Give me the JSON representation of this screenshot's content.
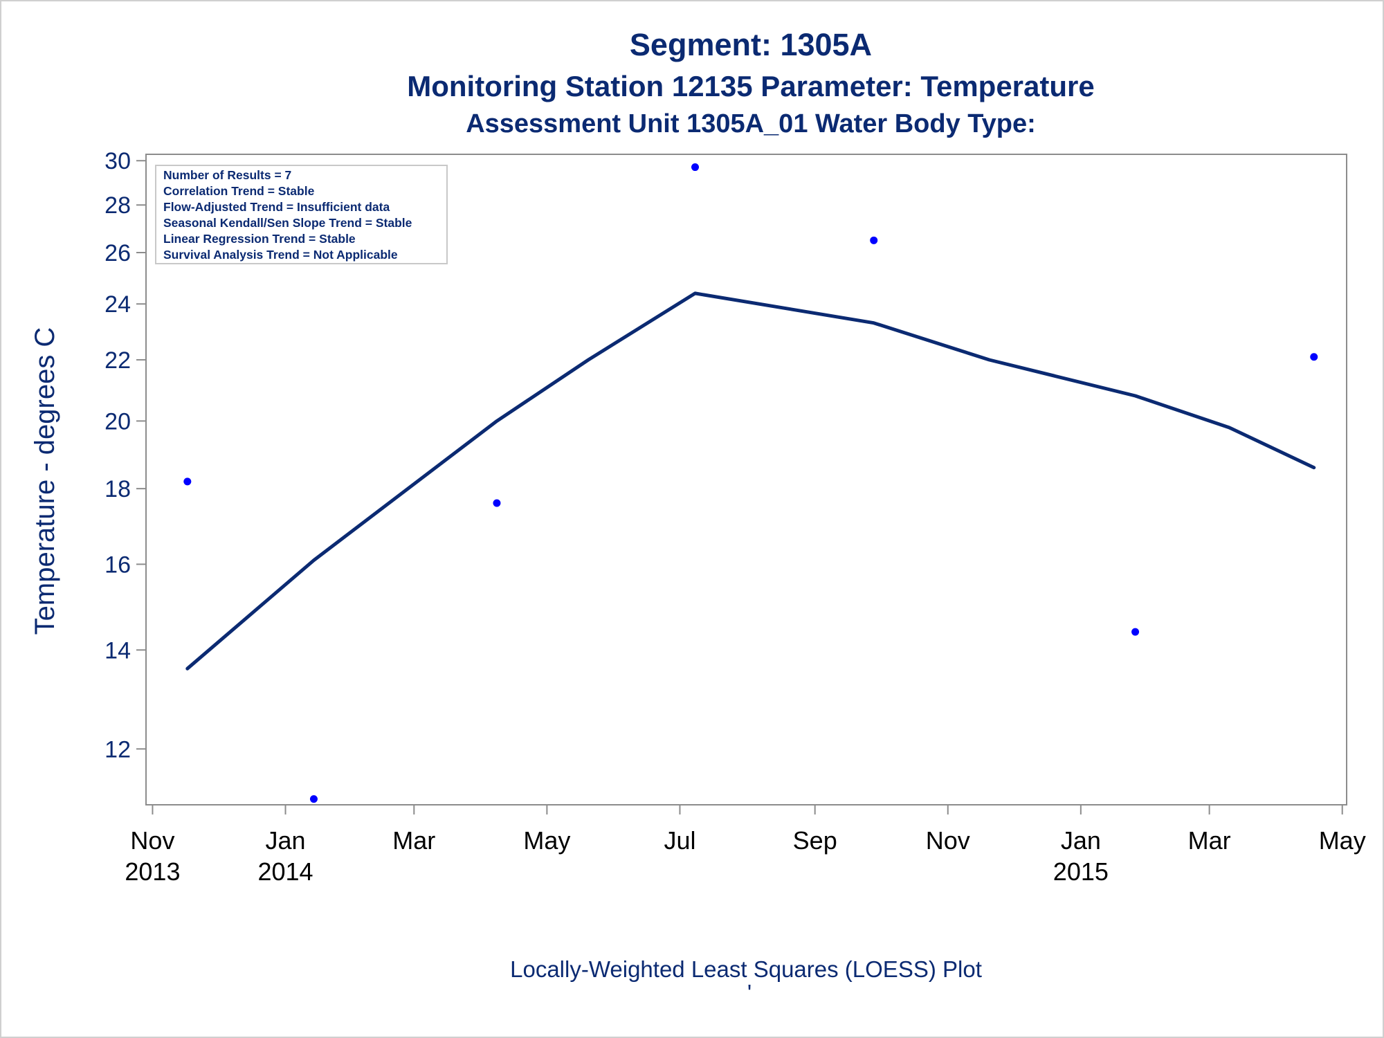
{
  "titles": {
    "line1": "Segment: 1305A",
    "line2": "Monitoring Station 12135 Parameter: Temperature",
    "line3": "Assessment Unit 1305A_01   Water Body Type:"
  },
  "stats_box": {
    "lines": [
      "Number of Results = 7",
      "Correlation Trend = Stable",
      "Flow-Adjusted Trend = Insufficient data",
      "Seasonal Kendall/Sen Slope Trend = Stable",
      "Linear Regression Trend = Stable",
      "Survival Analysis Trend = Not Applicable"
    ]
  },
  "footnote": {
    "text": "Locally-Weighted Least Squares (LOESS) Plot",
    "mark": "'"
  },
  "colors": {
    "text": "#0b2a72",
    "line": "#0b2a72",
    "points": "#0000ff",
    "axis": "#8c8c8c"
  },
  "chart_data": {
    "type": "scatter",
    "title": "Segment: 1305A",
    "ylabel": "Temperature - degrees C",
    "xlabel": "",
    "y_scale": "log",
    "ylim": [
      11.0,
      30.3
    ],
    "xlim": [
      "2013-10-29",
      "2015-05-03"
    ],
    "y_ticks": [
      12,
      14,
      16,
      18,
      20,
      22,
      24,
      26,
      28,
      30
    ],
    "x_ticks": [
      {
        "date": "2013-11-01",
        "label": [
          "Nov",
          "2013"
        ]
      },
      {
        "date": "2014-01-01",
        "label": [
          "Jan",
          "2014"
        ]
      },
      {
        "date": "2014-03-01",
        "label": [
          "Mar",
          ""
        ]
      },
      {
        "date": "2014-05-01",
        "label": [
          "May",
          ""
        ]
      },
      {
        "date": "2014-07-01",
        "label": [
          "Jul",
          ""
        ]
      },
      {
        "date": "2014-09-01",
        "label": [
          "Sep",
          ""
        ]
      },
      {
        "date": "2014-11-01",
        "label": [
          "Nov",
          ""
        ]
      },
      {
        "date": "2015-01-01",
        "label": [
          "Jan",
          "2015"
        ]
      },
      {
        "date": "2015-03-01",
        "label": [
          "Mar",
          ""
        ]
      },
      {
        "date": "2015-05-01",
        "label": [
          "May",
          ""
        ]
      }
    ],
    "series": [
      {
        "kind": "scatter",
        "points": [
          {
            "x": "2013-11-17",
            "y": 18.2
          },
          {
            "x": "2014-01-14",
            "y": 11.1
          },
          {
            "x": "2014-04-08",
            "y": 17.6
          },
          {
            "x": "2014-07-08",
            "y": 29.7
          },
          {
            "x": "2014-09-28",
            "y": 26.5
          },
          {
            "x": "2015-01-26",
            "y": 14.4
          },
          {
            "x": "2015-04-18",
            "y": 22.1
          }
        ]
      },
      {
        "kind": "loess",
        "points": [
          {
            "x": "2013-11-17",
            "y": 13.6
          },
          {
            "x": "2014-01-14",
            "y": 16.1
          },
          {
            "x": "2014-04-08",
            "y": 20.0
          },
          {
            "x": "2014-05-20",
            "y": 22.0
          },
          {
            "x": "2014-07-08",
            "y": 24.4
          },
          {
            "x": "2014-09-28",
            "y": 23.3
          },
          {
            "x": "2014-11-20",
            "y": 22.0
          },
          {
            "x": "2015-01-26",
            "y": 20.8
          },
          {
            "x": "2015-03-10",
            "y": 19.8
          },
          {
            "x": "2015-04-18",
            "y": 18.6
          }
        ]
      }
    ],
    "grid": false,
    "legend": "none"
  }
}
